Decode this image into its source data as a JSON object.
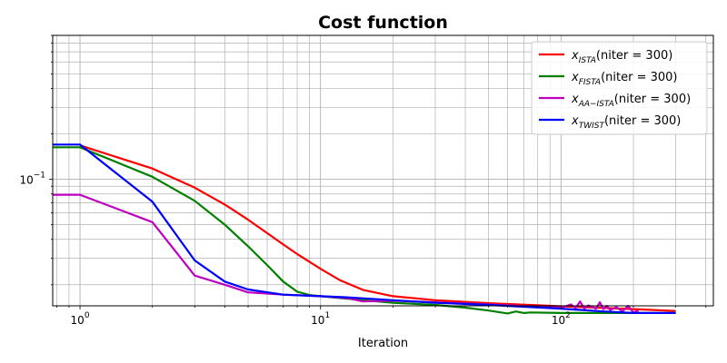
{
  "chart_data": {
    "type": "line",
    "title": "Cost function",
    "xlabel": "Iteration",
    "ylabel": "",
    "xscale": "log",
    "yscale": "log",
    "xlim": [
      0.77,
      430
    ],
    "ylim": [
      0.0145,
      0.9
    ],
    "grid": true,
    "grid_minor": true,
    "legend_position": "top-right",
    "x_tick_labels": [
      {
        "value": 1,
        "base": "10",
        "exp": "0"
      },
      {
        "value": 10,
        "base": "10",
        "exp": "1"
      },
      {
        "value": 100,
        "base": "10",
        "exp": "2"
      }
    ],
    "y_tick_labels": [
      {
        "value": 0.1,
        "base": "10",
        "exp": "−1"
      }
    ],
    "series": [
      {
        "name": "x_ISTA(niter = 300)",
        "legend": {
          "sym": "x",
          "sub": "ISTA",
          "rest": "(niter = 300)"
        },
        "color": "#ff0000",
        "x": [
          1,
          2,
          3,
          4,
          5,
          6,
          7,
          8,
          10,
          12,
          15,
          20,
          30,
          50,
          100,
          200,
          300
        ],
        "y": [
          0.168,
          0.118,
          0.088,
          0.068,
          0.054,
          0.044,
          0.037,
          0.032,
          0.0255,
          0.0215,
          0.0185,
          0.0168,
          0.0158,
          0.0151,
          0.0144,
          0.0138,
          0.0134
        ]
      },
      {
        "name": "x_FISTA(niter = 300)",
        "legend": {
          "sym": "x",
          "sub": "FISTA",
          "rest": "(niter = 300)"
        },
        "color": "#008000",
        "x": [
          0.77,
          1,
          2,
          3,
          4,
          5,
          6,
          7,
          8,
          9,
          10,
          15,
          20,
          30,
          40,
          50,
          60,
          65,
          70,
          75,
          100,
          200,
          300
        ],
        "y": [
          0.163,
          0.163,
          0.104,
          0.072,
          0.05,
          0.036,
          0.027,
          0.021,
          0.018,
          0.0171,
          0.0168,
          0.0158,
          0.0152,
          0.0147,
          0.0141,
          0.0135,
          0.0129,
          0.0133,
          0.013,
          0.0131,
          0.013,
          0.013,
          0.013
        ]
      },
      {
        "name": "x_AA−ISTA(niter = 300)",
        "legend": {
          "sym": "x",
          "sub": "AA−ISTA",
          "rest": "(niter = 300)"
        },
        "color": "#bf00bf",
        "x": [
          0.77,
          1,
          2,
          3,
          4,
          5,
          7,
          10,
          13,
          15,
          20,
          30,
          50,
          100,
          110,
          115,
          120,
          125,
          130,
          140,
          145,
          150,
          155,
          160,
          170,
          180,
          190,
          200,
          210
        ],
        "y": [
          0.079,
          0.079,
          0.052,
          0.023,
          0.02,
          0.0178,
          0.0172,
          0.0168,
          0.0163,
          0.0155,
          0.0157,
          0.0153,
          0.0148,
          0.0141,
          0.0148,
          0.014,
          0.0155,
          0.0139,
          0.0146,
          0.0139,
          0.0153,
          0.0138,
          0.0145,
          0.0136,
          0.0142,
          0.0133,
          0.0145,
          0.0131,
          0.0135
        ]
      },
      {
        "name": "x_TWIST(niter = 300)",
        "legend": {
          "sym": "x",
          "sub": "TWIST",
          "rest": "(niter = 300)"
        },
        "color": "#0000ff",
        "x": [
          0.77,
          1,
          2,
          3,
          4,
          5,
          7,
          10,
          13,
          20,
          30,
          50,
          100,
          150,
          200,
          300
        ],
        "y": [
          0.17,
          0.17,
          0.071,
          0.029,
          0.021,
          0.0186,
          0.0172,
          0.0168,
          0.0165,
          0.0158,
          0.0152,
          0.0147,
          0.0139,
          0.0133,
          0.013,
          0.013
        ]
      }
    ]
  }
}
